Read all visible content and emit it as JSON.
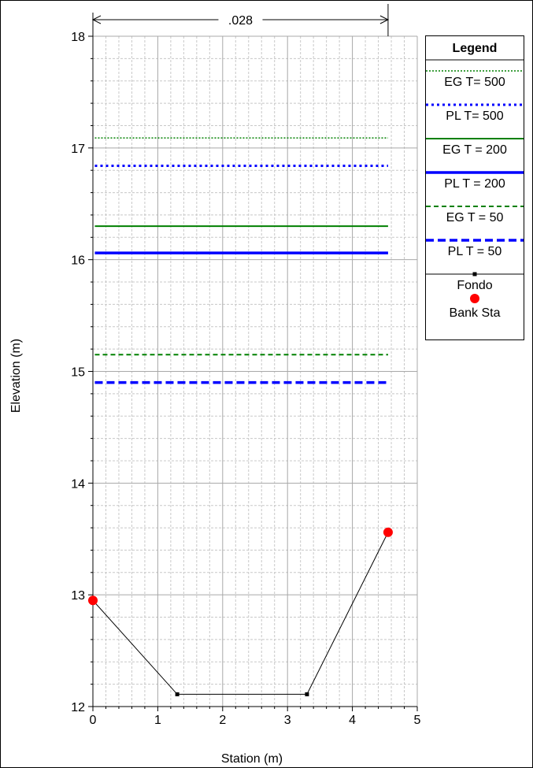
{
  "chart_data": {
    "type": "line",
    "xlabel": "Station (m)",
    "ylabel": "Elevation (m)",
    "xlim": [
      0,
      5
    ],
    "ylim": [
      12,
      18
    ],
    "x_ticks": [
      0,
      1,
      2,
      3,
      4,
      5
    ],
    "y_ticks": [
      12,
      13,
      14,
      15,
      16,
      17,
      18
    ],
    "grid": true,
    "legend_title": "Legend",
    "legend_position": "right",
    "manning_label": ".028",
    "manning_span": [
      0,
      4.55
    ],
    "water_levels": [
      {
        "name": "EG T= 500",
        "elevation": 17.09,
        "color": "#008000",
        "style": "dotted"
      },
      {
        "name": "PL T= 500",
        "elevation": 16.84,
        "color": "#0000ff",
        "style": "dotted-bold"
      },
      {
        "name": "EG T = 200",
        "elevation": 16.3,
        "color": "#008000",
        "style": "solid"
      },
      {
        "name": "PL T = 200",
        "elevation": 16.06,
        "color": "#0000ff",
        "style": "solid-bold"
      },
      {
        "name": "EG T = 50",
        "elevation": 15.15,
        "color": "#008000",
        "style": "dashed"
      },
      {
        "name": "PL T = 50",
        "elevation": 14.9,
        "color": "#0000ff",
        "style": "dashed-bold"
      }
    ],
    "water_extent": [
      0.03,
      4.55
    ],
    "ground": {
      "name": "Fondo",
      "color": "#000000",
      "x": [
        0,
        1.3,
        3.3,
        4.55
      ],
      "y": [
        12.95,
        12.11,
        12.11,
        13.56
      ]
    },
    "bank_stations": {
      "name": "Bank Sta",
      "color": "#ff0000",
      "x": [
        0,
        4.55
      ],
      "y": [
        12.95,
        13.56
      ]
    }
  }
}
